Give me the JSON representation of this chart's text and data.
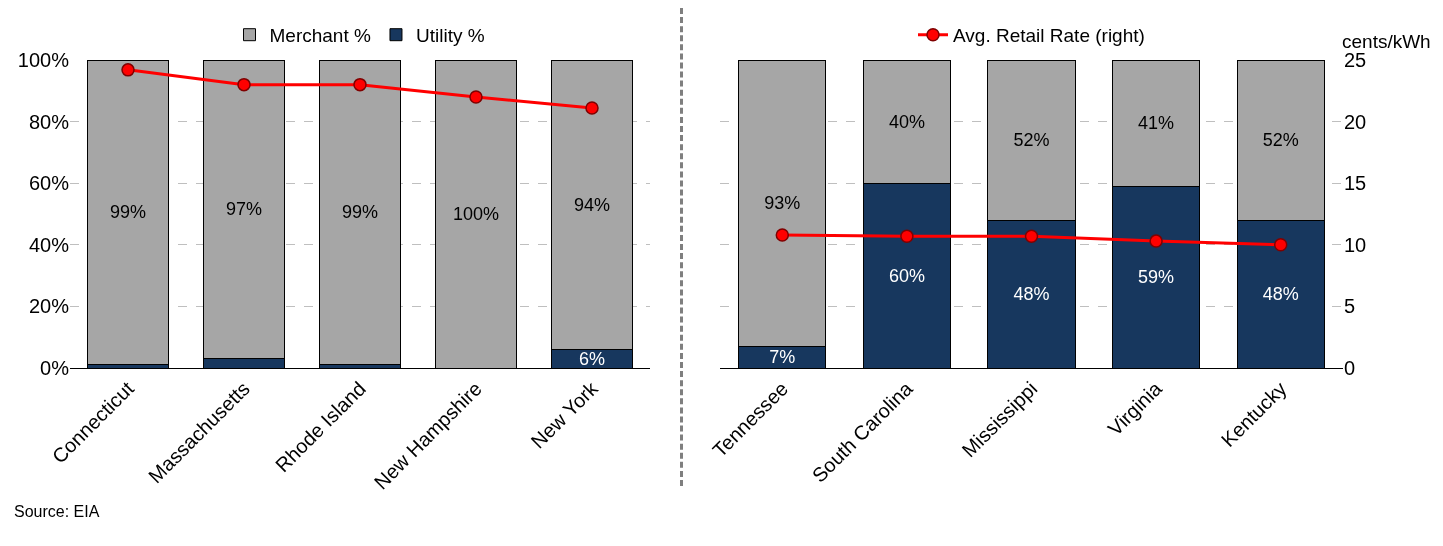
{
  "chart_data": [
    {
      "type": "bar",
      "stacked": true,
      "categories": [
        "Connecticut",
        "Massachusetts",
        "Rhode Island",
        "New Hampshire",
        "New York"
      ],
      "series": [
        {
          "name": "Utility %",
          "color": "#17375e",
          "values": [
            1,
            3,
            1,
            0,
            6
          ],
          "value_labels": [
            null,
            null,
            null,
            null,
            "6%"
          ]
        },
        {
          "name": "Merchant %",
          "color": "#a6a6a6",
          "values": [
            99,
            97,
            99,
            100,
            94
          ],
          "value_labels": [
            "99%",
            "97%",
            "99%",
            "100%",
            "94%"
          ]
        },
        {
          "type": "line",
          "axis": "y2",
          "color": "#ff0000",
          "values": [
            24.2,
            23.0,
            23.0,
            22.0,
            21.1
          ]
        }
      ],
      "ylim": [
        0,
        100
      ],
      "yticks": [
        {
          "value": 0,
          "label": "0%"
        },
        {
          "value": 20,
          "label": "20%"
        },
        {
          "value": 40,
          "label": "40%"
        },
        {
          "value": 60,
          "label": "60%"
        },
        {
          "value": 80,
          "label": "80%"
        },
        {
          "value": 100,
          "label": "100%"
        }
      ],
      "y2lim": [
        0,
        25
      ],
      "grid": "y",
      "legend": "top",
      "marker": "circle",
      "line_style": "solid",
      "annotations": [
        "Source: EIA"
      ]
    },
    {
      "type": "bar",
      "stacked": true,
      "categories": [
        "Tennessee",
        "South Carolina",
        "Mississippi",
        "Virginia",
        "Kentucky"
      ],
      "series": [
        {
          "color": "#17375e",
          "values": [
            7,
            60,
            48,
            59,
            48
          ],
          "value_labels": [
            "7%",
            "60%",
            "48%",
            "59%",
            "48%"
          ]
        },
        {
          "color": "#a6a6a6",
          "values": [
            93,
            40,
            52,
            41,
            52
          ],
          "value_labels": [
            "93%",
            "40%",
            "52%",
            "41%",
            "52%"
          ]
        },
        {
          "type": "line",
          "axis": "y2",
          "name": "Avg. Retail Rate (right)",
          "color": "#ff0000",
          "values": [
            10.8,
            10.7,
            10.7,
            10.3,
            10.0
          ]
        }
      ],
      "ylim": [
        0,
        100
      ],
      "y2lim": [
        0,
        25
      ],
      "y2ticks": [
        0,
        5,
        10,
        15,
        20,
        25
      ],
      "y2label": "cents/kWh",
      "grid": "y",
      "legend": "top",
      "marker": "circle",
      "line_style": "solid"
    }
  ]
}
